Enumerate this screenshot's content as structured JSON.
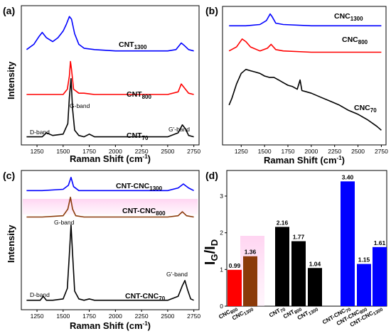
{
  "chart_data": [
    {
      "panel_label": "(a)",
      "type": "line",
      "xlabel_main": "Raman Shift (cm",
      "xlabel_exp": "-1",
      "xlabel_close": ")",
      "ylabel": "Intensity",
      "xlim": [
        1100,
        2800
      ],
      "x_ticks": [
        "1250",
        "1500",
        "1750",
        "2000",
        "2250",
        "2500",
        "2750"
      ],
      "x_tick_values": [
        1250,
        1500,
        1750,
        2000,
        2250,
        2500,
        2750
      ],
      "series": [
        {
          "name_main": "CNT",
          "name_sub": "1300",
          "color": "#0000ff",
          "x": [
            1150,
            1220,
            1270,
            1300,
            1340,
            1400,
            1450,
            1500,
            1530,
            1560,
            1580,
            1610,
            1650,
            1700,
            1800,
            2000,
            2300,
            2500,
            2580,
            2630,
            2660,
            2700,
            2750
          ],
          "y": [
            0.7,
            0.74,
            0.8,
            0.83,
            0.79,
            0.76,
            0.79,
            0.84,
            0.89,
            0.95,
            0.93,
            0.82,
            0.74,
            0.71,
            0.7,
            0.69,
            0.69,
            0.69,
            0.7,
            0.75,
            0.73,
            0.7,
            0.69
          ]
        },
        {
          "name_main": "CNT",
          "name_sub": "800",
          "color": "#ff0000",
          "x": [
            1150,
            1300,
            1500,
            1540,
            1560,
            1570,
            1580,
            1600,
            1650,
            1700,
            1800,
            2000,
            2300,
            2500,
            2600,
            2630,
            2650,
            2700,
            2750
          ],
          "y": [
            0.36,
            0.36,
            0.36,
            0.4,
            0.5,
            0.61,
            0.55,
            0.4,
            0.37,
            0.37,
            0.36,
            0.36,
            0.36,
            0.36,
            0.38,
            0.44,
            0.42,
            0.37,
            0.36
          ]
        },
        {
          "name_main": "CNT",
          "name_sub": "70",
          "color": "#000000",
          "x": [
            1150,
            1300,
            1340,
            1400,
            1500,
            1545,
            1560,
            1575,
            1590,
            1610,
            1650,
            1700,
            1750,
            1800,
            2000,
            2300,
            2500,
            2600,
            2640,
            2670,
            2700,
            2750
          ],
          "y": [
            0.04,
            0.04,
            0.07,
            0.05,
            0.06,
            0.14,
            0.34,
            0.48,
            0.25,
            0.09,
            0.05,
            0.04,
            0.06,
            0.04,
            0.04,
            0.04,
            0.04,
            0.07,
            0.13,
            0.1,
            0.05,
            0.04
          ]
        }
      ],
      "annotations": [
        "D-band",
        "G-band",
        "G'-band"
      ]
    },
    {
      "panel_label": "(b)",
      "type": "line",
      "xlabel_main": "Raman Shift (cm",
      "xlabel_exp": "-1",
      "xlabel_close": ")",
      "xlim": [
        1050,
        2800
      ],
      "x_ticks": [
        "1250",
        "1500",
        "1750",
        "2000",
        "2250",
        "2500",
        "2750"
      ],
      "x_tick_values": [
        1250,
        1500,
        1750,
        2000,
        2250,
        2500,
        2750
      ],
      "series": [
        {
          "name_main": "CNC",
          "name_sub": "1300",
          "color": "#0000ff",
          "x": [
            1120,
            1300,
            1450,
            1520,
            1560,
            1580,
            1620,
            1700,
            2000,
            2500,
            2750
          ],
          "y": [
            0.88,
            0.88,
            0.89,
            0.92,
            0.97,
            0.95,
            0.9,
            0.89,
            0.88,
            0.88,
            0.88
          ]
        },
        {
          "name_main": "CNC",
          "name_sub": "800",
          "color": "#ff0000",
          "x": [
            1120,
            1200,
            1260,
            1300,
            1350,
            1450,
            1530,
            1570,
            1620,
            1700,
            2000,
            2500,
            2750
          ],
          "y": [
            0.69,
            0.72,
            0.78,
            0.76,
            0.72,
            0.69,
            0.71,
            0.74,
            0.7,
            0.69,
            0.68,
            0.68,
            0.68
          ]
        },
        {
          "name_main": "CNC",
          "name_sub": "70",
          "color": "#000000",
          "x": [
            1120,
            1150,
            1200,
            1250,
            1300,
            1350,
            1400,
            1450,
            1500,
            1550,
            1600,
            1650,
            1700,
            1750,
            1800,
            1850,
            1880,
            1900,
            1950,
            2000,
            2100,
            2200,
            2300,
            2400,
            2500,
            2600,
            2700,
            2750
          ],
          "y": [
            0.28,
            0.33,
            0.44,
            0.52,
            0.55,
            0.54,
            0.53,
            0.52,
            0.5,
            0.49,
            0.49,
            0.47,
            0.45,
            0.43,
            0.42,
            0.4,
            0.47,
            0.39,
            0.38,
            0.37,
            0.34,
            0.31,
            0.28,
            0.24,
            0.21,
            0.17,
            0.12,
            0.09
          ]
        }
      ]
    },
    {
      "panel_label": "(c)",
      "type": "line",
      "xlabel_main": "Raman Shift (cm",
      "xlabel_exp": "-1",
      "xlabel_close": ")",
      "ylabel": "Intensity",
      "xlim": [
        1100,
        2800
      ],
      "x_ticks": [
        "1250",
        "1500",
        "1750",
        "2000",
        "2250",
        "2500",
        "2750"
      ],
      "x_tick_values": [
        1250,
        1500,
        1750,
        2000,
        2250,
        2500,
        2750
      ],
      "series": [
        {
          "name_main": "CNT-CNC",
          "name_sub": "1300",
          "color": "#0000ff",
          "x": [
            1150,
            1300,
            1500,
            1550,
            1575,
            1600,
            1650,
            1800,
            2000,
            2500,
            2600,
            2650,
            2700,
            2750
          ],
          "y": [
            0.88,
            0.88,
            0.89,
            0.92,
            0.98,
            0.91,
            0.88,
            0.88,
            0.88,
            0.88,
            0.9,
            0.93,
            0.9,
            0.88
          ]
        },
        {
          "name_main": "CNT-CNC",
          "name_sub": "800",
          "color": "#8b3a0a",
          "x": [
            1150,
            1300,
            1500,
            1545,
            1570,
            1590,
            1620,
            1700,
            2000,
            2500,
            2600,
            2640,
            2680,
            2750
          ],
          "y": [
            0.68,
            0.68,
            0.69,
            0.74,
            0.83,
            0.74,
            0.69,
            0.68,
            0.68,
            0.68,
            0.69,
            0.72,
            0.69,
            0.68
          ]
        },
        {
          "name_main": "CNT-CNC",
          "name_sub": "70",
          "color": "#000000",
          "x": [
            1150,
            1280,
            1310,
            1340,
            1400,
            1500,
            1540,
            1560,
            1575,
            1590,
            1610,
            1650,
            1700,
            1750,
            1800,
            2000,
            2300,
            2500,
            2600,
            2640,
            2665,
            2690,
            2720,
            2750
          ],
          "y": [
            0.05,
            0.05,
            0.08,
            0.05,
            0.05,
            0.06,
            0.14,
            0.4,
            0.62,
            0.4,
            0.12,
            0.06,
            0.05,
            0.06,
            0.05,
            0.05,
            0.05,
            0.05,
            0.08,
            0.16,
            0.2,
            0.13,
            0.06,
            0.05
          ]
        }
      ],
      "annotations": [
        "D-band",
        "G-band",
        "G'-band"
      ]
    },
    {
      "panel_label": "(d)",
      "type": "bar",
      "ylabel_main": "I",
      "ylabel_sub1": "G",
      "ylabel_slash": "/I",
      "ylabel_sub2": "D",
      "ylim": [
        0,
        3.6
      ],
      "y_ticks": [
        "0",
        "1",
        "2",
        "3"
      ],
      "y_tick_values": [
        0,
        1,
        2,
        3
      ],
      "categories": [
        {
          "main": "CNC",
          "sub": "800"
        },
        {
          "main": "CNC",
          "sub": "1300"
        },
        {
          "main": "CNT",
          "sub": "70"
        },
        {
          "main": "CNT",
          "sub": "800"
        },
        {
          "main": "CNT",
          "sub": "1300"
        },
        {
          "main": "CNT-CNC",
          "sub": "70"
        },
        {
          "main": "CNT-CNC",
          "sub": "800"
        },
        {
          "main": "CNT-CNC",
          "sub": "1300"
        }
      ],
      "values": [
        0.99,
        1.36,
        2.16,
        1.77,
        1.04,
        3.4,
        1.15,
        1.61
      ],
      "value_labels": [
        "0.99",
        "1.36",
        "2.16",
        "1.77",
        "1.04",
        "3.40",
        "1.15",
        "1.61"
      ],
      "colors": [
        "#ff0000",
        "#8b3a0a",
        "#000000",
        "#000000",
        "#000000",
        "#0000ff",
        "#0000ff",
        "#0000ff"
      ]
    }
  ]
}
